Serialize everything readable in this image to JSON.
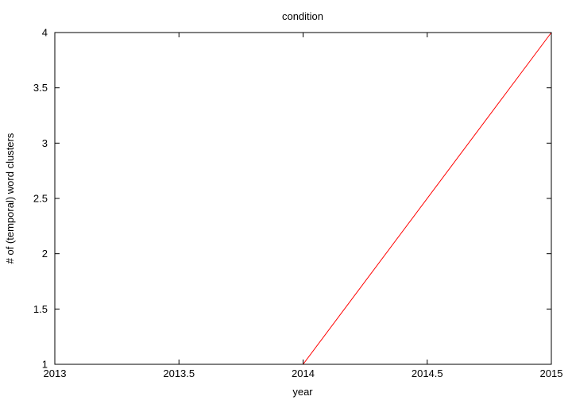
{
  "chart_data": {
    "type": "line",
    "title": "condition",
    "xlabel": "year",
    "ylabel": "# of (temporal) word clusters",
    "xlim": [
      2013,
      2015
    ],
    "ylim": [
      1,
      4
    ],
    "x_ticks": [
      "2013",
      "2013.5",
      "2014",
      "2014.5",
      "2015"
    ],
    "y_ticks": [
      "1",
      "1.5",
      "2",
      "2.5",
      "3",
      "3.5",
      "4"
    ],
    "grid": false,
    "legend": "none",
    "series": [
      {
        "color": "#ff0000",
        "x": [
          2013,
          2014,
          2015
        ],
        "y": [
          1,
          1,
          4
        ]
      }
    ]
  }
}
